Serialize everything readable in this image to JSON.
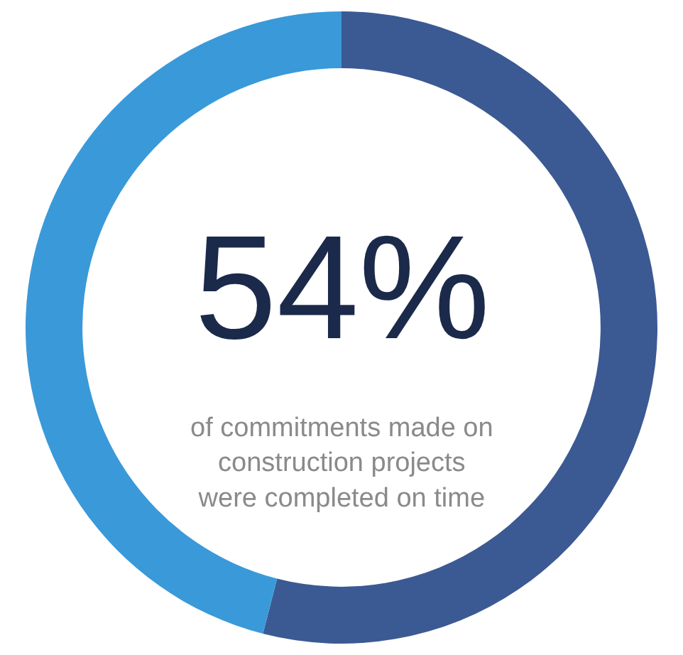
{
  "chart_data": {
    "type": "donut",
    "categories": [
      null,
      null
    ],
    "values": [
      54,
      46
    ],
    "colors": [
      "#3b5a93",
      "#3a99d9"
    ],
    "annotations": [
      "54%",
      "of commitments made on construction projects were completed on time"
    ]
  }
}
